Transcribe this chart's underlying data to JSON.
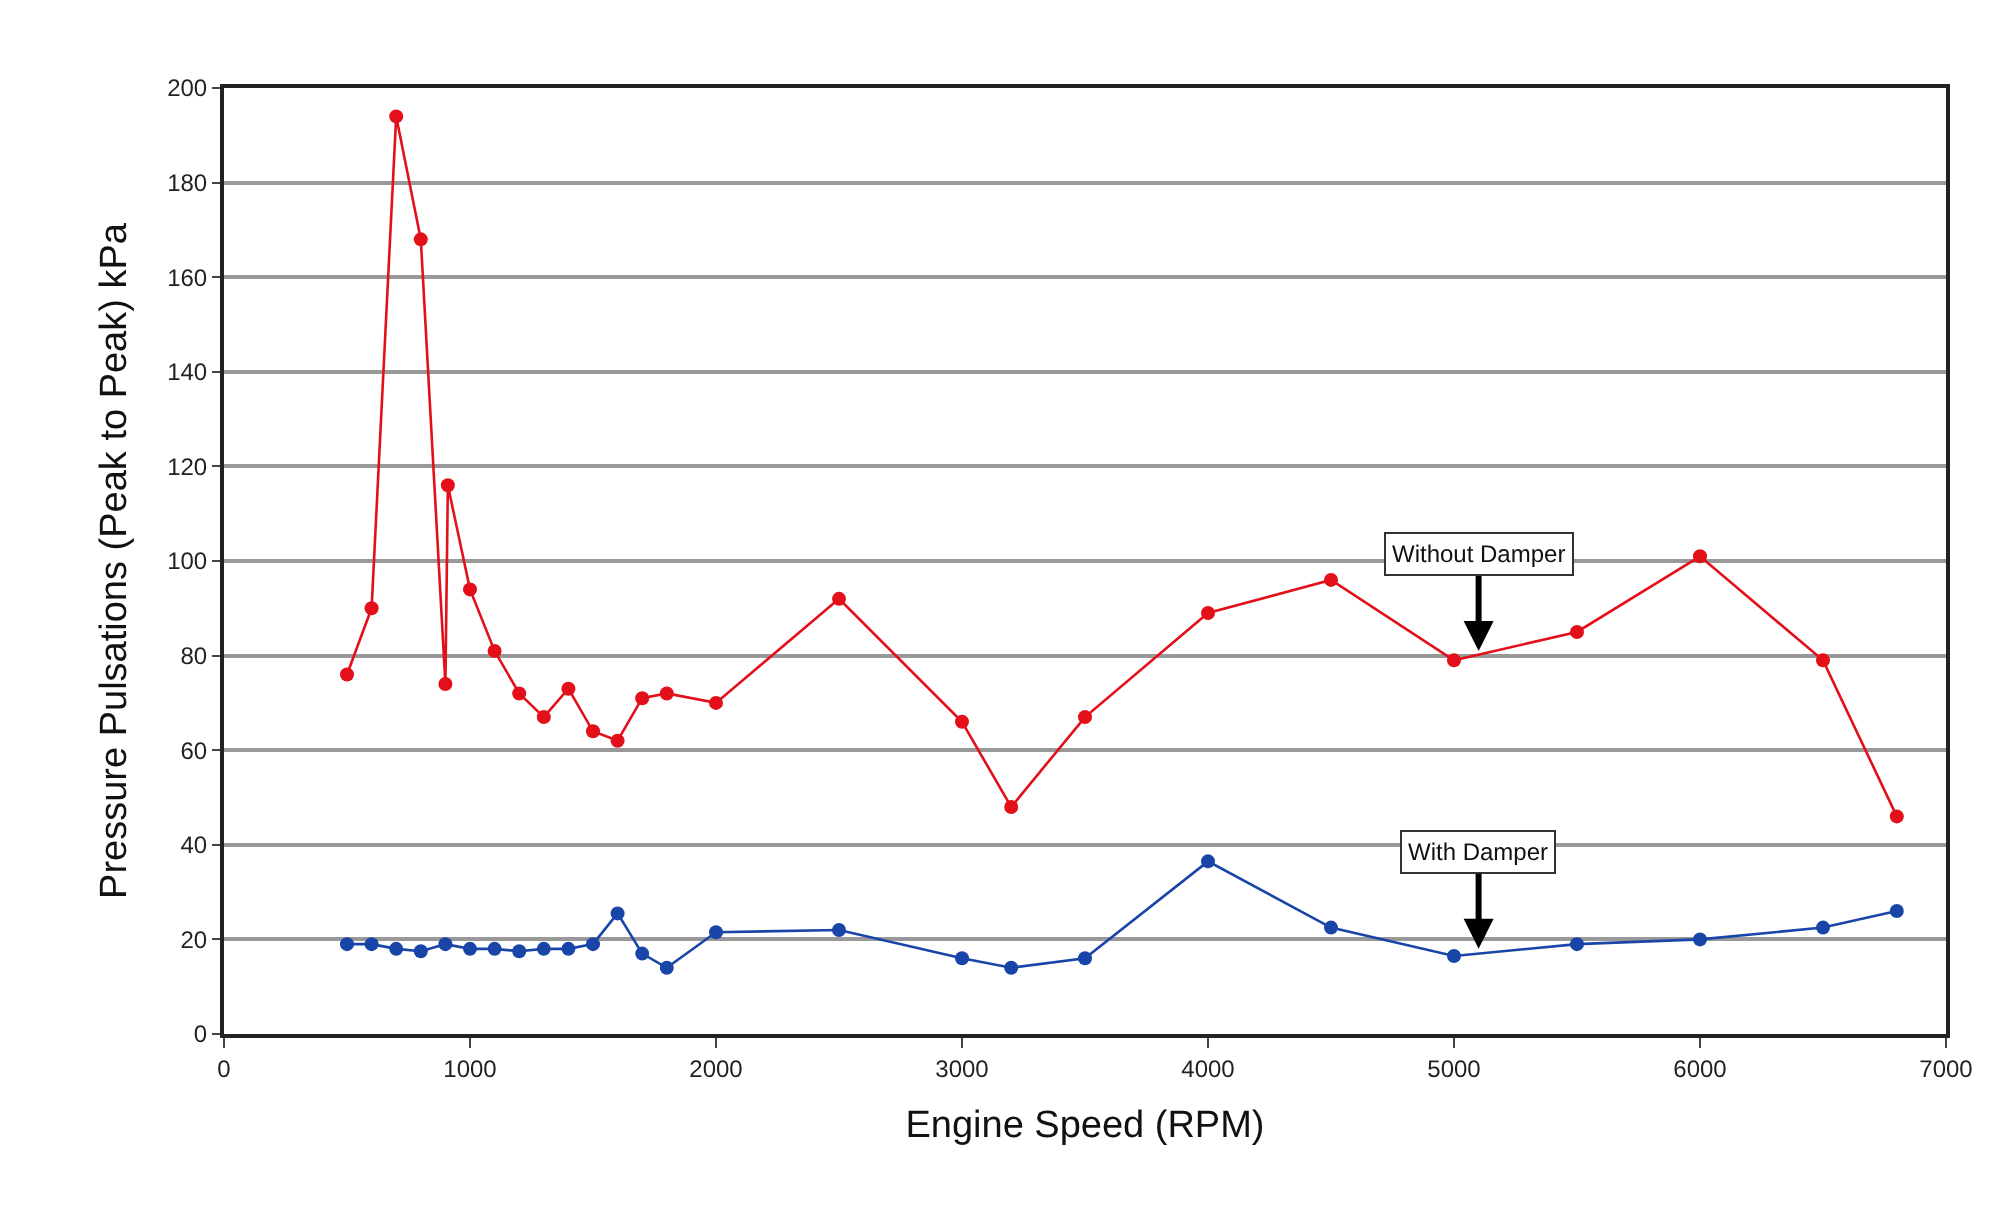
{
  "chart_data": {
    "type": "line",
    "xlabel": "Engine Speed (RPM)",
    "ylabel": "Pressure Pulsations (Peak to Peak) kPa",
    "xlim": [
      0,
      7000
    ],
    "xticks": [
      0,
      1000,
      2000,
      3000,
      4000,
      5000,
      6000,
      7000
    ],
    "ylim": [
      0,
      200
    ],
    "yticks": [
      0,
      20,
      40,
      60,
      80,
      100,
      120,
      140,
      160,
      180,
      200
    ],
    "grid": "y",
    "legend": false,
    "marker": "circle",
    "line_style": "solid",
    "series": [
      {
        "color": "#e3101a",
        "x": [
          500,
          600,
          700,
          800,
          900,
          910,
          1000,
          1100,
          1200,
          1300,
          1400,
          1500,
          1600,
          1700,
          1800,
          2000,
          2500,
          3000,
          3200,
          3500,
          4000,
          4500,
          5000,
          5500,
          6000,
          6500,
          6800
        ],
        "values": [
          76,
          90,
          194,
          168,
          74,
          116,
          94,
          81,
          72,
          67,
          73,
          64,
          62,
          71,
          72,
          70,
          92,
          66,
          48,
          67,
          89,
          96,
          79,
          85,
          101,
          79,
          46
        ]
      },
      {
        "color": "#1a45a8",
        "x": [
          500,
          600,
          700,
          800,
          900,
          1000,
          1100,
          1200,
          1300,
          1400,
          1500,
          1600,
          1700,
          1800,
          2000,
          2500,
          3000,
          3200,
          3500,
          4000,
          4500,
          5000,
          5500,
          6000,
          6500,
          6800
        ],
        "values": [
          19,
          19,
          18,
          17.5,
          19,
          18,
          18,
          17.5,
          18,
          18,
          19,
          25.5,
          17,
          14,
          21.5,
          22,
          16,
          14,
          16,
          36.5,
          22.5,
          16.5,
          19,
          20,
          22.5,
          26
        ]
      }
    ],
    "annotations": [
      {
        "text": "Without Damper",
        "x": 5100,
        "y": 81
      },
      {
        "text": "With Damper",
        "x": 5100,
        "y": 18
      }
    ]
  }
}
